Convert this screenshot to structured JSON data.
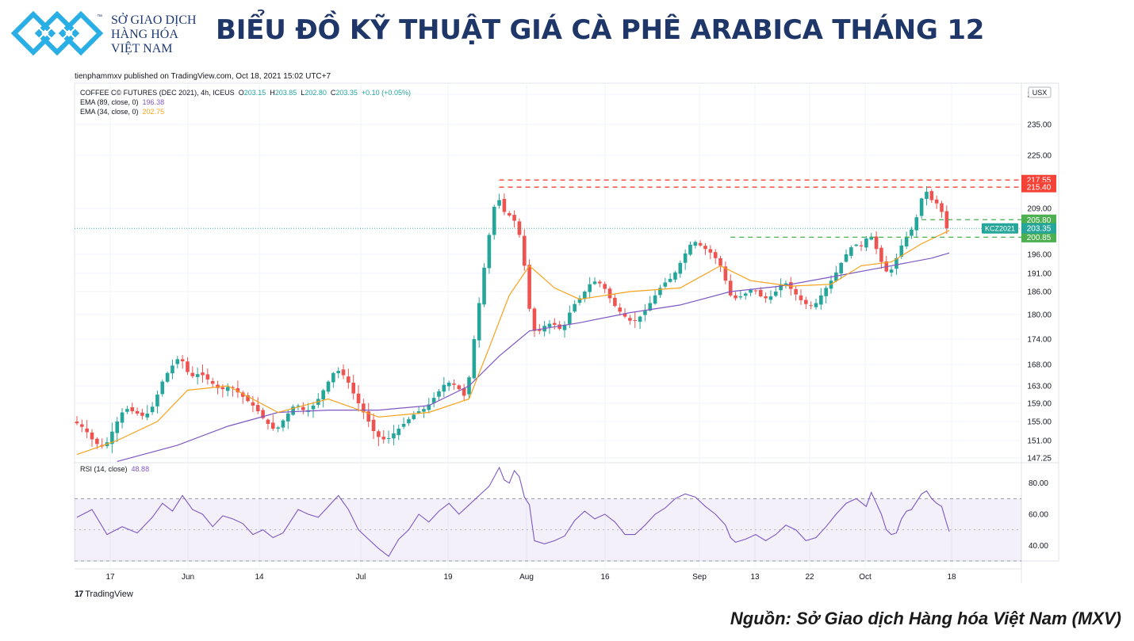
{
  "header": {
    "logo_lines": [
      "SỞ GIAO DỊCH",
      "HÀNG HÓA",
      "VIỆT NAM"
    ],
    "logo_tm": "™",
    "title": "BIỂU ĐỒ KỸ THUẬT GIÁ CÀ PHÊ ARABICA THÁNG 12",
    "brand_color": "#1e3768",
    "logo_color": "#29aee6"
  },
  "publish_line": "tienphammxv published on TradingView.com, Oct 18, 2021 15:02 UTC+7",
  "legend": {
    "symbol": "COFFEE C© FUTURES (DEC 2021), 4h, ICEUS",
    "o_label": "O",
    "o_value": "203.15",
    "h_label": "H",
    "h_value": "203.85",
    "l_label": "L",
    "l_value": "202.80",
    "c_label": "C",
    "c_value": "203.35",
    "change": "+0.10 (+0.05%)",
    "ema89_label": "EMA (89, close, 0)",
    "ema89_value": "196.38",
    "ema34_label": "EMA (34, close, 0)",
    "ema34_value": "202.75",
    "rsi_label": "RSI (14, close)",
    "rsi_value": "48.88"
  },
  "footer": {
    "tradingview": "TradingView",
    "tv_mark": "17",
    "source": "Nguồn: Sở Giao dịch Hàng hóa Việt Nam (MXV)"
  },
  "chart_data": [
    {
      "type": "candlestick",
      "title": "COFFEE C© FUTURES (DEC 2021), 4h, ICEUS",
      "currency": "USX",
      "symbol_tag": "KCZ2021",
      "ylim": [
        147.25,
        245.0
      ],
      "y_ticks": [
        "245.00",
        "235.00",
        "225.00",
        "209.00",
        "196.00",
        "191.00",
        "186.00",
        "180.00",
        "174.00",
        "168.00",
        "163.00",
        "159.00",
        "155.00",
        "151.00",
        "147.25"
      ],
      "x_ticks": [
        "17",
        "Jun",
        "14",
        "Jul",
        "19",
        "Aug",
        "16",
        "Sep",
        "13",
        "22",
        "Oct",
        "18"
      ],
      "last_price": 203.35,
      "price_path": [
        [
          0,
          155
        ],
        [
          2,
          153.5
        ],
        [
          4,
          150.5
        ],
        [
          6,
          149.5
        ],
        [
          8,
          154
        ],
        [
          10,
          158
        ],
        [
          12,
          157
        ],
        [
          14,
          156
        ],
        [
          16,
          159
        ],
        [
          17,
          163
        ],
        [
          19,
          167
        ],
        [
          21,
          170
        ],
        [
          23,
          165
        ],
        [
          25,
          166
        ],
        [
          27,
          164
        ],
        [
          29,
          162
        ],
        [
          31,
          163
        ],
        [
          33,
          161
        ],
        [
          36,
          158
        ],
        [
          38,
          155
        ],
        [
          40,
          153
        ],
        [
          42,
          156
        ],
        [
          44,
          159
        ],
        [
          46,
          157
        ],
        [
          48,
          159
        ],
        [
          50,
          163
        ],
        [
          52,
          167
        ],
        [
          54,
          165
        ],
        [
          56,
          160
        ],
        [
          58,
          156
        ],
        [
          60,
          152
        ],
        [
          62,
          151
        ],
        [
          64,
          153
        ],
        [
          66,
          155
        ],
        [
          68,
          157
        ],
        [
          70,
          158
        ],
        [
          72,
          161
        ],
        [
          74,
          164
        ],
        [
          76,
          163
        ],
        [
          78,
          160
        ],
        [
          79,
          170
        ],
        [
          80,
          178
        ],
        [
          81,
          188
        ],
        [
          82,
          197
        ],
        [
          83,
          206
        ],
        [
          84,
          213
        ],
        [
          85,
          210
        ],
        [
          86,
          206
        ],
        [
          87,
          208
        ],
        [
          88,
          203
        ],
        [
          89,
          200
        ],
        [
          90,
          186
        ],
        [
          91,
          177
        ],
        [
          92,
          175
        ],
        [
          93,
          177
        ],
        [
          95,
          178
        ],
        [
          97,
          176
        ],
        [
          99,
          182
        ],
        [
          101,
          185
        ],
        [
          103,
          189
        ],
        [
          105,
          188
        ],
        [
          107,
          183
        ],
        [
          109,
          180
        ],
        [
          111,
          178
        ],
        [
          113,
          180
        ],
        [
          115,
          184
        ],
        [
          117,
          188
        ],
        [
          119,
          190
        ],
        [
          121,
          195
        ],
        [
          123,
          200
        ],
        [
          125,
          198
        ],
        [
          127,
          196
        ],
        [
          128,
          194
        ],
        [
          129,
          192
        ],
        [
          130,
          186
        ],
        [
          131,
          184
        ],
        [
          133,
          185
        ],
        [
          135,
          187
        ],
        [
          137,
          184
        ],
        [
          139,
          185
        ],
        [
          141,
          189
        ],
        [
          143,
          186
        ],
        [
          145,
          183
        ],
        [
          147,
          182
        ],
        [
          149,
          186
        ],
        [
          151,
          190
        ],
        [
          153,
          195
        ],
        [
          155,
          199
        ],
        [
          157,
          198
        ],
        [
          158,
          203
        ],
        [
          159,
          199
        ],
        [
          160,
          196
        ],
        [
          161,
          192
        ],
        [
          162,
          191
        ],
        [
          163,
          193
        ],
        [
          164,
          197
        ],
        [
          165,
          200
        ],
        [
          166,
          202
        ],
        [
          167,
          204
        ],
        [
          168,
          209
        ],
        [
          169,
          215
        ],
        [
          170,
          213
        ],
        [
          171,
          210
        ],
        [
          172,
          211
        ],
        [
          173,
          205
        ],
        [
          173.5,
          203.35
        ]
      ],
      "series": [
        {
          "name": "EMA (89, close, 0)",
          "value": 196.38,
          "color": "#7e57c2",
          "values": [
            [
              8,
              146.5
            ],
            [
              20,
              150
            ],
            [
              30,
              154
            ],
            [
              40,
              157
            ],
            [
              50,
              157.5
            ],
            [
              60,
              157.5
            ],
            [
              70,
              158.5
            ],
            [
              78,
              163
            ],
            [
              84,
              170
            ],
            [
              90,
              176
            ],
            [
              100,
              178
            ],
            [
              110,
              180.5
            ],
            [
              120,
              182.5
            ],
            [
              130,
              186
            ],
            [
              140,
              187.5
            ],
            [
              150,
              190
            ],
            [
              160,
              192.5
            ],
            [
              170,
              195
            ],
            [
              173.5,
              196.38
            ]
          ]
        },
        {
          "name": "EMA (34, close, 0)",
          "value": 202.75,
          "color": "#f7a21b",
          "values": [
            [
              0,
              148
            ],
            [
              8,
              151
            ],
            [
              16,
              155
            ],
            [
              22,
              162
            ],
            [
              30,
              163
            ],
            [
              40,
              157
            ],
            [
              50,
              160
            ],
            [
              60,
              156
            ],
            [
              70,
              157
            ],
            [
              78,
              160
            ],
            [
              82,
              172
            ],
            [
              86,
              185
            ],
            [
              90,
              193
            ],
            [
              95,
              187
            ],
            [
              100,
              184
            ],
            [
              110,
              186
            ],
            [
              120,
              187
            ],
            [
              128,
              193
            ],
            [
              134,
              189
            ],
            [
              142,
              187.5
            ],
            [
              150,
              188
            ],
            [
              156,
              193
            ],
            [
              162,
              194
            ],
            [
              168,
              199
            ],
            [
              173.5,
              202.75
            ]
          ]
        }
      ],
      "levels": [
        {
          "label": "217.55",
          "value": 217.55,
          "color": "#f44336",
          "style": "dashed"
        },
        {
          "label": "215.40",
          "value": 215.4,
          "color": "#f44336",
          "style": "dashed"
        },
        {
          "label": "205.80",
          "value": 205.8,
          "color": "#4caf50",
          "style": "dashed"
        },
        {
          "label": "200.85",
          "value": 200.85,
          "color": "#4caf50",
          "style": "dashed"
        }
      ]
    },
    {
      "type": "line",
      "title": "RSI (14, close)",
      "ylim": [
        30,
        90
      ],
      "y_ticks": [
        "80.00",
        "60.00",
        "40.00"
      ],
      "band": [
        30,
        70
      ],
      "midline": 50,
      "series": [
        {
          "name": "RSI (14, close)",
          "value": 48.88,
          "color": "#7e57c2",
          "values": [
            [
              0,
              58
            ],
            [
              3,
              63
            ],
            [
              6,
              47
            ],
            [
              9,
              52
            ],
            [
              12,
              48
            ],
            [
              15,
              58
            ],
            [
              17,
              67
            ],
            [
              19,
              62
            ],
            [
              21,
              72
            ],
            [
              23,
              63
            ],
            [
              25,
              60
            ],
            [
              27,
              52
            ],
            [
              29,
              59
            ],
            [
              31,
              57
            ],
            [
              33,
              54
            ],
            [
              35,
              47
            ],
            [
              37,
              50
            ],
            [
              39,
              45
            ],
            [
              41,
              48
            ],
            [
              44,
              63
            ],
            [
              46,
              60
            ],
            [
              48,
              58
            ],
            [
              50,
              65
            ],
            [
              52,
              72
            ],
            [
              54,
              63
            ],
            [
              56,
              50
            ],
            [
              58,
              44
            ],
            [
              60,
              38
            ],
            [
              62,
              33
            ],
            [
              64,
              44
            ],
            [
              66,
              50
            ],
            [
              68,
              60
            ],
            [
              70,
              55
            ],
            [
              72,
              62
            ],
            [
              74,
              67
            ],
            [
              76,
              60
            ],
            [
              78,
              66
            ],
            [
              80,
              72
            ],
            [
              82,
              78
            ],
            [
              84,
              90
            ],
            [
              85,
              82
            ],
            [
              86,
              80
            ],
            [
              87,
              88
            ],
            [
              88,
              84
            ],
            [
              89,
              71
            ],
            [
              90,
              66
            ],
            [
              91,
              43
            ],
            [
              93,
              41
            ],
            [
              95,
              43
            ],
            [
              97,
              46
            ],
            [
              99,
              56
            ],
            [
              101,
              62
            ],
            [
              103,
              57
            ],
            [
              105,
              60
            ],
            [
              107,
              55
            ],
            [
              109,
              47
            ],
            [
              111,
              47
            ],
            [
              113,
              53
            ],
            [
              115,
              60
            ],
            [
              117,
              64
            ],
            [
              119,
              70
            ],
            [
              121,
              73
            ],
            [
              123,
              71
            ],
            [
              125,
              65
            ],
            [
              127,
              60
            ],
            [
              129,
              53
            ],
            [
              130,
              45
            ],
            [
              131,
              42
            ],
            [
              133,
              44
            ],
            [
              135,
              47
            ],
            [
              137,
              43
            ],
            [
              139,
              47
            ],
            [
              141,
              53
            ],
            [
              143,
              50
            ],
            [
              145,
              43
            ],
            [
              147,
              45
            ],
            [
              149,
              52
            ],
            [
              151,
              60
            ],
            [
              153,
              67
            ],
            [
              155,
              70
            ],
            [
              157,
              65
            ],
            [
              158,
              74
            ],
            [
              159,
              67
            ],
            [
              160,
              60
            ],
            [
              161,
              50
            ],
            [
              162,
              47
            ],
            [
              163,
              48
            ],
            [
              164,
              57
            ],
            [
              165,
              62
            ],
            [
              166,
              63
            ],
            [
              167,
              68
            ],
            [
              168,
              73
            ],
            [
              169,
              75
            ],
            [
              170,
              70
            ],
            [
              171,
              67
            ],
            [
              172,
              65
            ],
            [
              173,
              54
            ],
            [
              173.5,
              48.88
            ]
          ]
        }
      ]
    }
  ]
}
